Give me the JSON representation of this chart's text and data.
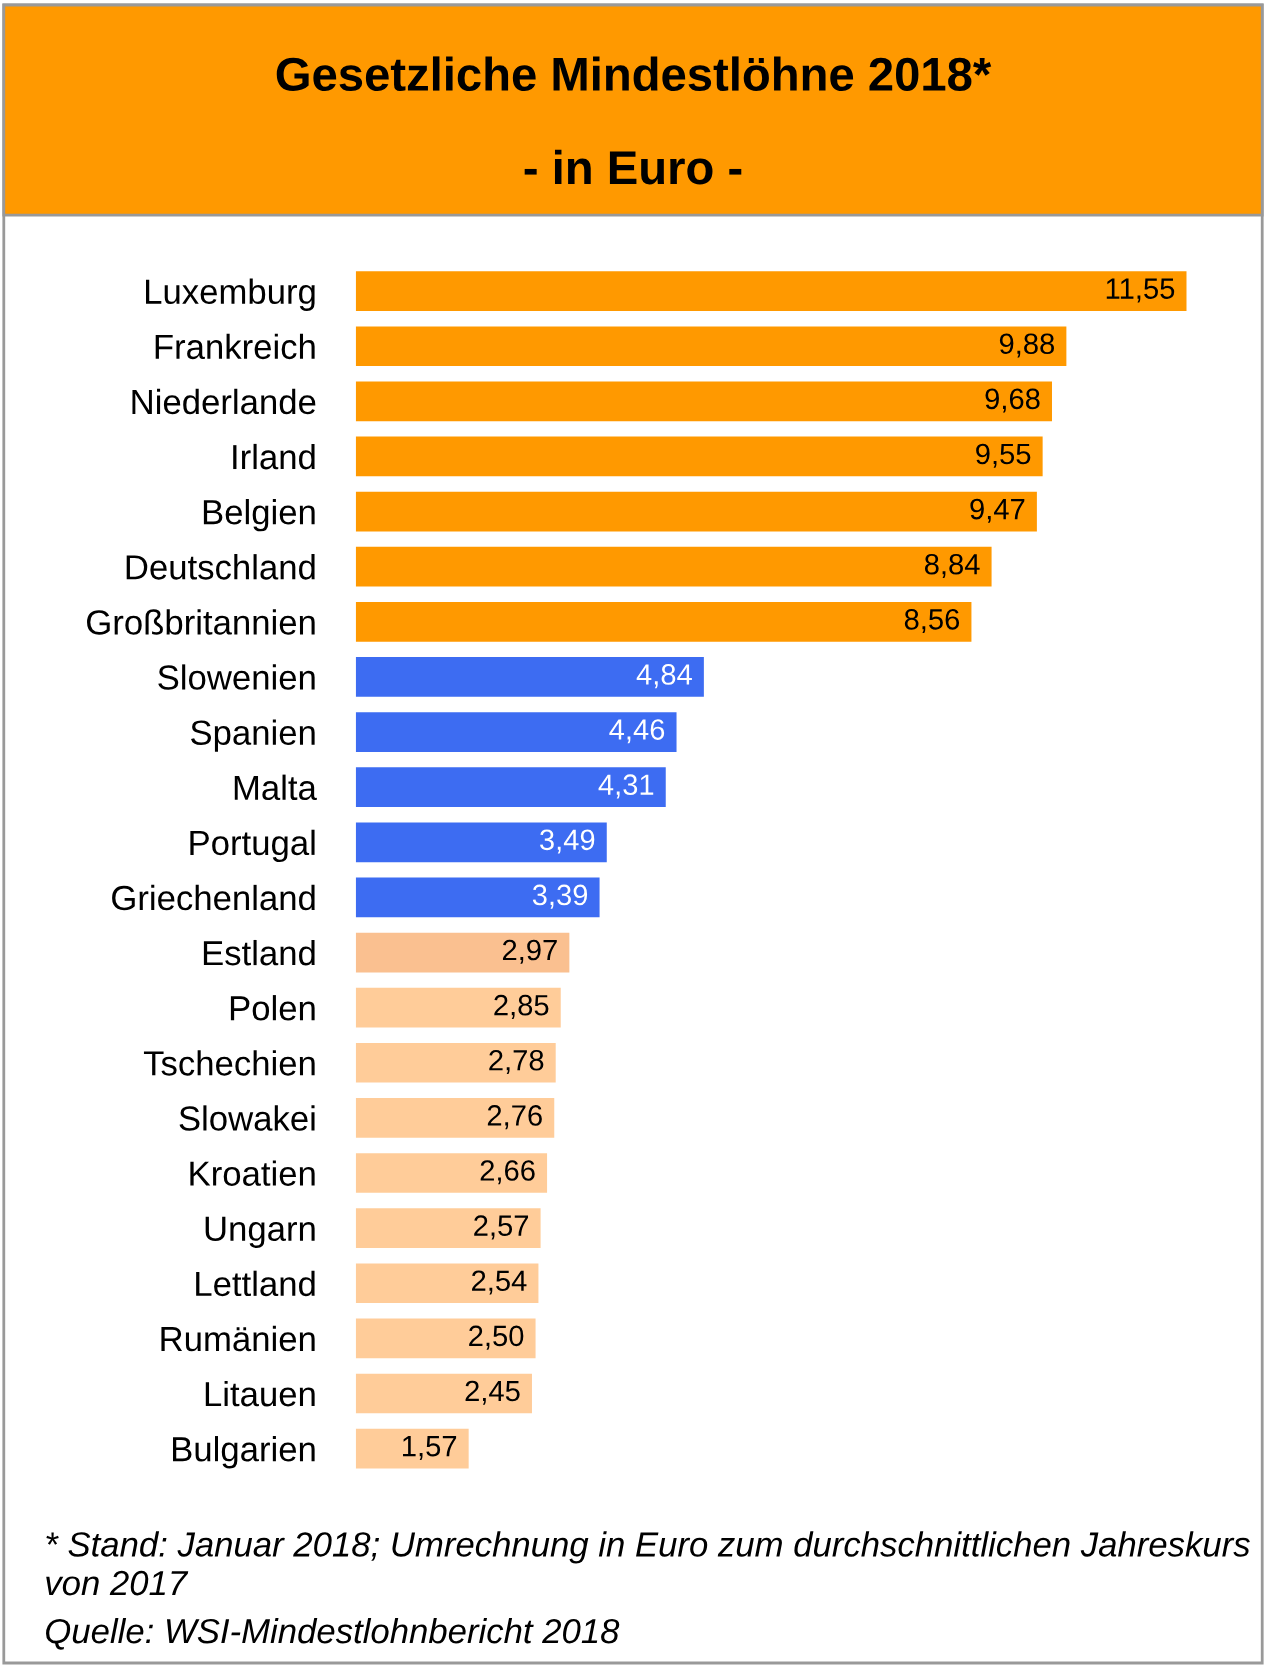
{
  "chart_data": {
    "type": "bar",
    "orientation": "horizontal",
    "title": "Gesetzliche Mindestlöhne 2018*",
    "subtitle": "- in Euro -",
    "categories": [
      "Luxemburg",
      "Frankreich",
      "Niederlande",
      "Irland",
      "Belgien",
      "Deutschland",
      "Großbritannien",
      "Slowenien",
      "Spanien",
      "Malta",
      "Portugal",
      "Griechenland",
      "Estland",
      "Polen",
      "Tschechien",
      "Slowakei",
      "Kroatien",
      "Ungarn",
      "Lettland",
      "Rumänien",
      "Litauen",
      "Bulgarien"
    ],
    "values": [
      11.55,
      9.88,
      9.68,
      9.55,
      9.47,
      8.84,
      8.56,
      4.84,
      4.46,
      4.31,
      3.49,
      3.39,
      2.97,
      2.85,
      2.78,
      2.76,
      2.66,
      2.57,
      2.54,
      2.5,
      2.45,
      1.57
    ],
    "value_labels": [
      "11,55",
      "9,88",
      "9,68",
      "9,55",
      "9,47",
      "8,84",
      "8,56",
      "4,84",
      "4,46",
      "4,31",
      "3,49",
      "3,39",
      "2,97",
      "2,85",
      "2,78",
      "2,76",
      "2,66",
      "2,57",
      "2,54",
      "2,50",
      "2,45",
      "1,57"
    ],
    "colors": [
      "#ff9900",
      "#ff9900",
      "#ff9900",
      "#ff9900",
      "#ff9900",
      "#ff9900",
      "#ff9900",
      "#3d6cf2",
      "#3d6cf2",
      "#3d6cf2",
      "#3d6cf2",
      "#3d6cf2",
      "#fac090",
      "#ffcc99",
      "#ffcc99",
      "#ffcc99",
      "#ffcc99",
      "#ffcc99",
      "#ffcc99",
      "#ffcc99",
      "#ffcc99",
      "#ffcc99"
    ],
    "tick_labels": "y",
    "grid": false,
    "legend": false,
    "annotations": [
      "* Stand: Januar 2018; Umrechnung in Euro zum durchschnittlichen Jahreskurs von 2017",
      "Quelle: WSI-Mindestlohnbericht 2018"
    ]
  }
}
